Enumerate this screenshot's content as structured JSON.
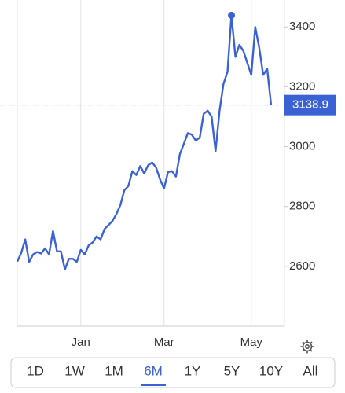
{
  "chart_data": {
    "type": "line",
    "categories": [
      null,
      null,
      null,
      null,
      null,
      null,
      null,
      null,
      null,
      null,
      null,
      null,
      null,
      null,
      null,
      null,
      "Jan",
      null,
      null,
      null,
      null,
      null,
      null,
      null,
      null,
      null,
      null,
      null,
      null,
      null,
      null,
      null,
      null,
      null,
      null,
      null,
      null,
      "Mar",
      null,
      null,
      null,
      null,
      null,
      null,
      null,
      null,
      null,
      null,
      null,
      null,
      null,
      null,
      null,
      null,
      null,
      null,
      null,
      null,
      null,
      "May",
      null,
      null,
      null,
      null,
      null
    ],
    "series": [
      {
        "color": "#3a62d4",
        "values": [
          2616,
          2645,
          2690,
          2615,
          2640,
          2648,
          2643,
          2660,
          2640,
          2718,
          2650,
          2650,
          2590,
          2625,
          2625,
          2615,
          2655,
          2640,
          2670,
          2680,
          2700,
          2690,
          2725,
          2738,
          2752,
          2775,
          2805,
          2855,
          2868,
          2918,
          2905,
          2935,
          2910,
          2938,
          2947,
          2930,
          2890,
          2860,
          2915,
          2918,
          2900,
          2975,
          3010,
          3045,
          3040,
          3020,
          3030,
          3110,
          3120,
          3100,
          2985,
          3120,
          3210,
          3250,
          3439,
          3300,
          3340,
          3320,
          3280,
          3240,
          3400,
          3330,
          3240,
          3260,
          3138.9
        ]
      }
    ],
    "ylim": [
      2400,
      3490
    ],
    "yticks": [
      2600,
      2800,
      3000,
      3200,
      3400
    ],
    "grid": true,
    "mark_max": true,
    "last_value_line": true
  },
  "range_buttons": [
    "1D",
    "1W",
    "1M",
    "6M",
    "1Y",
    "5Y",
    "10Y",
    "All"
  ],
  "selected_range": "6M"
}
